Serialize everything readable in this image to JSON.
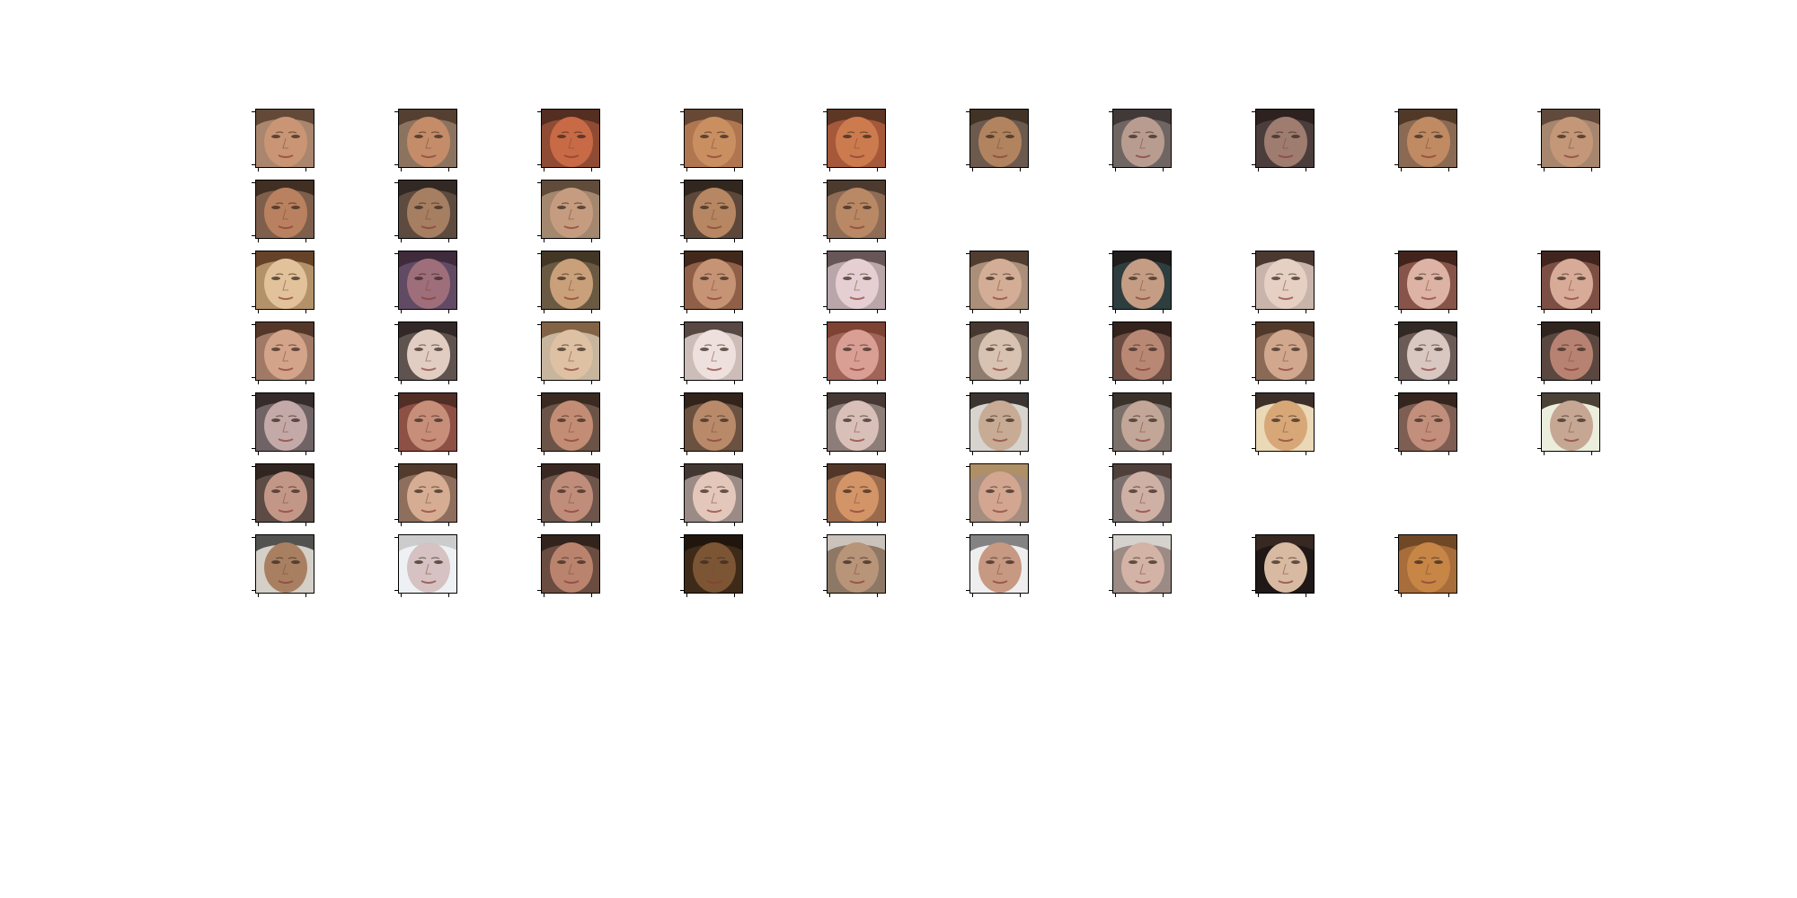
{
  "figure": {
    "background": "#ffffff",
    "columns": 10,
    "rows": [
      {
        "name": "person-1",
        "count": 10,
        "tones": [
          {
            "skin": "#c99574",
            "bg": "#a9866d",
            "hair": "#5b4332"
          },
          {
            "skin": "#c48c68",
            "bg": "#8c735f",
            "hair": "#4f3a2b"
          },
          {
            "skin": "#c86a45",
            "bg": "#8f4b34",
            "hair": "#4d2b1f"
          },
          {
            "skin": "#c98f61",
            "bg": "#b07650",
            "hair": "#5f4431"
          },
          {
            "skin": "#cc7b4e",
            "bg": "#a6583a",
            "hair": "#553322"
          },
          {
            "skin": "#b1845f",
            "bg": "#6b5a4d",
            "hair": "#3e2f24"
          },
          {
            "skin": "#b99c90",
            "bg": "#6f6663",
            "hair": "#3c3432"
          },
          {
            "skin": "#9f7c70",
            "bg": "#4a3d3b",
            "hair": "#2a1f1d"
          },
          {
            "skin": "#c08a63",
            "bg": "#8a6a52",
            "hair": "#4a3424"
          },
          {
            "skin": "#c39778",
            "bg": "#a6866f",
            "hair": "#5a4435"
          }
        ]
      },
      {
        "name": "person-1-continued",
        "count": 5,
        "tones": [
          {
            "skin": "#b98160",
            "bg": "#7d5f4b",
            "hair": "#3b2a20"
          },
          {
            "skin": "#a67e61",
            "bg": "#5d4b3f",
            "hair": "#2f2621"
          },
          {
            "skin": "#c69c80",
            "bg": "#a4876f",
            "hair": "#5a4535"
          },
          {
            "skin": "#b68762",
            "bg": "#5c473a",
            "hair": "#2d231d"
          },
          {
            "skin": "#b98865",
            "bg": "#8f6c55",
            "hair": "#45352a"
          }
        ]
      },
      {
        "name": "person-2",
        "count": 10,
        "tones": [
          {
            "skin": "#e2c29a",
            "bg": "#b39169",
            "hair": "#5d3b21"
          },
          {
            "skin": "#9f6e7b",
            "bg": "#614a63",
            "hair": "#3c2837"
          },
          {
            "skin": "#c9a07a",
            "bg": "#6a5a43",
            "hair": "#3e3222"
          },
          {
            "skin": "#c79375",
            "bg": "#8f6047",
            "hair": "#3a2216"
          },
          {
            "skin": "#e6cfd2",
            "bg": "#b9a6aa",
            "hair": "#5e4c4f"
          },
          {
            "skin": "#d3ad95",
            "bg": "#aa8f7a",
            "hair": "#463428"
          },
          {
            "skin": "#c59d84",
            "bg": "#2e3d3e",
            "hair": "#1f1a18"
          },
          {
            "skin": "#e6cfc3",
            "bg": "#c8b4aa",
            "hair": "#3d2b24"
          },
          {
            "skin": "#dcb3a4",
            "bg": "#87544a",
            "hair": "#3b1f18"
          },
          {
            "skin": "#d7ab98",
            "bg": "#7c4f45",
            "hair": "#3a2019"
          }
        ]
      },
      {
        "name": "person-3",
        "count": 10,
        "tones": [
          {
            "skin": "#d3a48a",
            "bg": "#a07a67",
            "hair": "#4d3024"
          },
          {
            "skin": "#e2cdc3",
            "bg": "#5f534f",
            "hair": "#2c2422"
          },
          {
            "skin": "#dec1a3",
            "bg": "#c7b59e",
            "hair": "#7b5a3b"
          },
          {
            "skin": "#eee0dc",
            "bg": "#ccbdb8",
            "hair": "#4b3b36"
          },
          {
            "skin": "#d99f94",
            "bg": "#a06558",
            "hair": "#7a3e30"
          },
          {
            "skin": "#d8c2b1",
            "bg": "#8e7c6f",
            "hair": "#3e3129"
          },
          {
            "skin": "#b98874",
            "bg": "#6b4d43",
            "hair": "#2f1f19"
          },
          {
            "skin": "#d1a88e",
            "bg": "#8a6a57",
            "hair": "#4a3426"
          },
          {
            "skin": "#d9c7c1",
            "bg": "#6a5b57",
            "hair": "#2c2320"
          },
          {
            "skin": "#b88272",
            "bg": "#5a4740",
            "hair": "#2b201b"
          }
        ]
      },
      {
        "name": "person-4",
        "count": 10,
        "tones": [
          {
            "skin": "#c4a9a9",
            "bg": "#6f6365",
            "hair": "#2f2625"
          },
          {
            "skin": "#c78e7a",
            "bg": "#8e4f45",
            "hair": "#4a2a22"
          },
          {
            "skin": "#c28d74",
            "bg": "#6b5447",
            "hair": "#35261d"
          },
          {
            "skin": "#b88a6a",
            "bg": "#6a5140",
            "hair": "#2c1f17"
          },
          {
            "skin": "#d8c0b8",
            "bg": "#8d7d78",
            "hair": "#3e312c"
          },
          {
            "skin": "#c8ab95",
            "bg": "#d7d4cf",
            "hair": "#2a2420"
          },
          {
            "skin": "#c2a697",
            "bg": "#7c716a",
            "hair": "#352b26"
          },
          {
            "skin": "#d8a778",
            "bg": "#ead8b6",
            "hair": "#2a1e18"
          },
          {
            "skin": "#c28f7c",
            "bg": "#7e5e52",
            "hair": "#2e1f19"
          },
          {
            "skin": "#c6a793",
            "bg": "#eceedd",
            "hair": "#3a2e25"
          }
        ]
      },
      {
        "name": "person-5",
        "count": 7,
        "tones": [
          {
            "skin": "#c39787",
            "bg": "#5d4b45",
            "hair": "#2c211d"
          },
          {
            "skin": "#d6ad93",
            "bg": "#8e6e5c",
            "hair": "#4b3427"
          },
          {
            "skin": "#c08d7b",
            "bg": "#6d554c",
            "hair": "#33241e"
          },
          {
            "skin": "#e4c7bb",
            "bg": "#9a8b86",
            "hair": "#3a2d28"
          },
          {
            "skin": "#d39467",
            "bg": "#9a6a4c",
            "hair": "#4a3124"
          },
          {
            "skin": "#d2a691",
            "bg": "#a58d7f",
            "hair": "#b08f63"
          },
          {
            "skin": "#cfb0a5",
            "bg": "#7c716e",
            "hair": "#4a3b35"
          }
        ]
      },
      {
        "name": "person-6",
        "count": 9,
        "tones": [
          {
            "skin": "#a97f62",
            "bg": "#d4d0c8",
            "hair": "#444444"
          },
          {
            "skin": "#d6c2c2",
            "bg": "#eef1f4",
            "hair": "#c8c8c8"
          },
          {
            "skin": "#b9836e",
            "bg": "#6a4c40",
            "hair": "#2c1f19"
          },
          {
            "skin": "#7c5535",
            "bg": "#3e2a18",
            "hair": "#1e140c"
          },
          {
            "skin": "#b89478",
            "bg": "#8c7864",
            "hair": "#d0cbc4"
          },
          {
            "skin": "#c79882",
            "bg": "#eeeeee",
            "hair": "#777777"
          },
          {
            "skin": "#d2b3a5",
            "bg": "#9c8a85",
            "hair": "#dcd8d5"
          },
          {
            "skin": "#d8baa2",
            "bg": "#1f1817",
            "hair": "#3a2a22"
          },
          {
            "skin": "#c78546",
            "bg": "#a76d3a",
            "hair": "#6a4424"
          }
        ]
      }
    ]
  }
}
